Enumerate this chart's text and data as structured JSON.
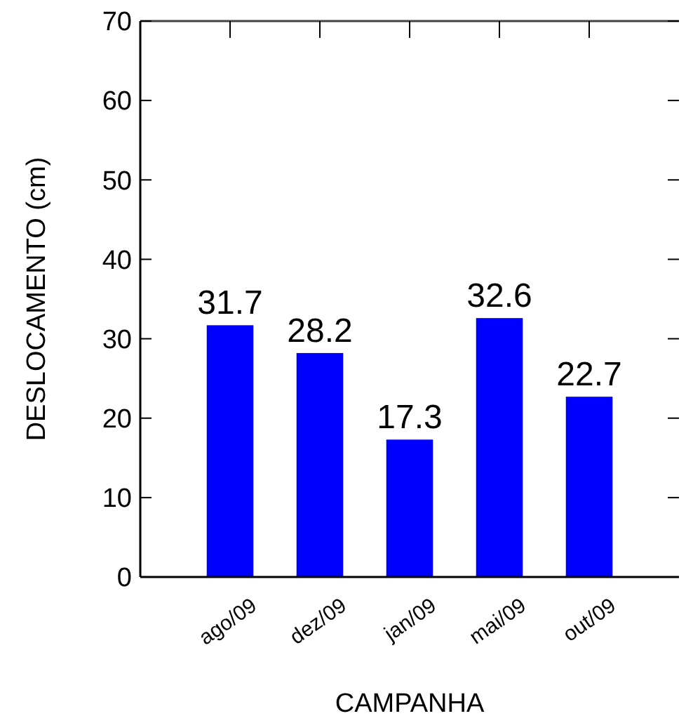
{
  "chart_data": {
    "type": "bar",
    "xlabel": "CAMPANHA",
    "ylabel": "DESLOCAMENTO (cm)",
    "categories": [
      "ago/09",
      "dez/09",
      "jan/09",
      "mai/09",
      "out/09"
    ],
    "values": [
      31.7,
      28.2,
      17.3,
      32.6,
      22.7
    ],
    "color": "#0000ff",
    "ylim": [
      0,
      70
    ],
    "yticks": [
      0,
      10,
      20,
      30,
      40,
      50,
      60,
      70
    ],
    "data_labels": true,
    "grid": false
  }
}
